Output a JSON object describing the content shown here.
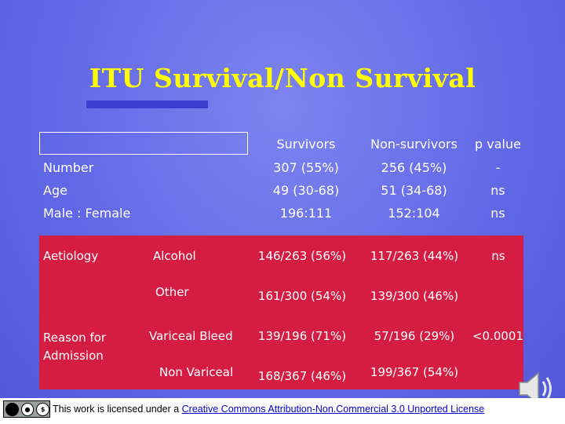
{
  "title": "ITU Survival/Non Survival",
  "columns": {
    "survivors": "Survivors",
    "non_survivors": "Non-survivors",
    "p_value": "p value"
  },
  "rows": [
    {
      "label": "Number",
      "survivors": "307 (55%)",
      "non_survivors": "256 (45%)",
      "p_value": "-"
    },
    {
      "label": "Age",
      "survivors": "49 (30-68)",
      "non_survivors": "51 (34-68)",
      "p_value": "ns"
    },
    {
      "label": "Male : Female",
      "survivors": "196:111",
      "non_survivors": "152:104",
      "p_value": "ns"
    }
  ],
  "aetiology": {
    "label": "Aetiology",
    "alcohol": {
      "label": "Alcohol",
      "survivors": "146/263 (56%)",
      "non_survivors": "117/263 (44%)",
      "p_value": "ns"
    },
    "other": {
      "label": "Other",
      "survivors": "161/300 (54%)",
      "non_survivors": "139/300 (46%)"
    }
  },
  "admission": {
    "label": "Reason for Admission",
    "variceal": {
      "label": "Variceal Bleed",
      "survivors": "139/196 (71%)",
      "non_survivors": "57/196 (29%)",
      "p_value": "<0.0001"
    },
    "non_variceal": {
      "label": "Non Variceal",
      "survivors": "168/367 (46%)",
      "non_survivors": "199/367 (54%)"
    }
  },
  "footer": {
    "license_prefix": "This work is licensed under a ",
    "license_link": "Creative Commons Attribution-Non.Commercial 3.0 Unported License"
  },
  "colors": {
    "background": "#6269e6",
    "title": "#ffff00",
    "panel": "#d51c43"
  }
}
